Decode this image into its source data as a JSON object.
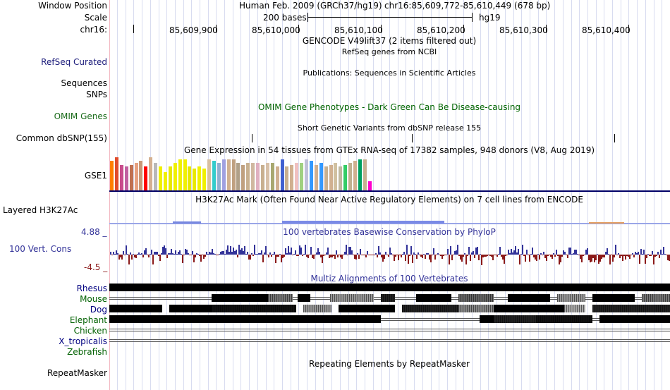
{
  "header": {
    "window_position_label": "Window Position",
    "scale_label": "Scale",
    "chrom_label": "chr16:",
    "assembly_text": "Human Feb. 2009 (GRCh37/hg19)",
    "position_text": "chr16:85,609,772-85,610,449 (678 bp)",
    "scale_text": "200 bases",
    "build_text": "hg19"
  },
  "ruler": {
    "ticks": [
      "85,609,900",
      "85,610,000",
      "85,610,100",
      "85,610,200",
      "85,610,300",
      "85,610,400"
    ]
  },
  "tracks": {
    "gencode_title": "GENCODE V49lift37 (2 items filtered out)",
    "refseq_label": "RefSeq Curated",
    "refseq_title": "RefSeq genes from NCBI",
    "publications_title": "Publications: Sequences in Scientific Articles",
    "sequences_label": "Sequences",
    "snps_label": "SNPs",
    "omim_label": "OMIM Genes",
    "omim_title": "OMIM Gene Phenotypes - Dark Green Can Be Disease-causing",
    "dbsnp_title": "Short Genetic Variants from dbSNP release 155",
    "dbsnp_label": "Common dbSNP(155)",
    "gtex_title": "Gene Expression in 54 tissues from GTEx RNA-seq of 17382 samples, 948 donors (V8, Aug 2019)",
    "gtex_label": "GSE1",
    "h3k27_label": "Layered H3K27Ac",
    "h3k27_title": "H3K27Ac Mark (Often Found Near Active Regulatory Elements) on 7 cell lines from ENCODE",
    "cons_label": "100 Vert. Cons",
    "cons_max": "4.88 _",
    "cons_min": "-4.5 _",
    "cons_title": "100 vertebrates Basewise Conservation by PhyloP",
    "multiz_title": "Multiz Alignments of 100 Vertebrates",
    "species": [
      "Rhesus",
      "Mouse",
      "Dog",
      "Elephant",
      "Chicken",
      "X_tropicalis",
      "Zebrafish"
    ],
    "repeat_label": "RepeatMasker",
    "repeat_title": "Repeating Elements by RepeatMasker"
  },
  "gtex_values": [
    32,
    36,
    28,
    26,
    28,
    30,
    32,
    26,
    36,
    30,
    26,
    20,
    26,
    30,
    34,
    34,
    26,
    24,
    26,
    24,
    34,
    32,
    30,
    34,
    34,
    34,
    30,
    28,
    30,
    30,
    30,
    28,
    30,
    30,
    26,
    34,
    26,
    28,
    30,
    30,
    34,
    32,
    28,
    30,
    26,
    28,
    30,
    26,
    28,
    30,
    32,
    34,
    34,
    10
  ],
  "colors": {
    "species_blue": "#000080",
    "species_green": "#006000",
    "cons_pos": "#333399",
    "cons_neg": "#8b1a1a",
    "omim_green": "#006400",
    "label_blue": "#1a1a7a",
    "label_green": "#1a6b1a"
  }
}
